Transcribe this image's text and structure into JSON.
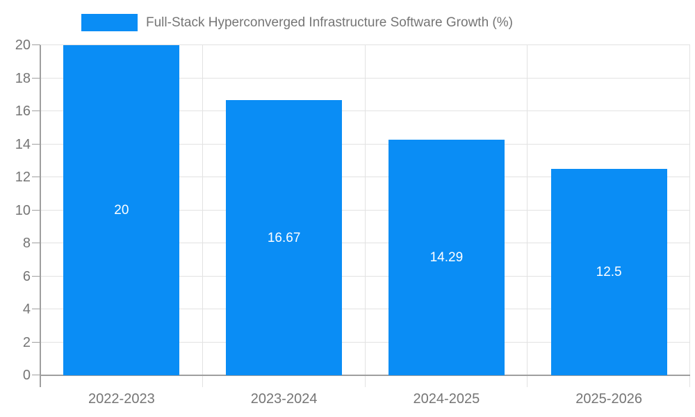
{
  "chart_data": {
    "type": "bar",
    "title": "Full-Stack Hyperconverged Infrastructure Software Growth (%)",
    "legend_position": "top",
    "categories": [
      "2022-2023",
      "2023-2024",
      "2024-2025",
      "2025-2026"
    ],
    "series": [
      {
        "name": "Full-Stack Hyperconverged Infrastructure Software Growth (%)",
        "values": [
          20,
          16.67,
          14.29,
          12.5
        ],
        "labels": [
          "20",
          "16.67",
          "14.29",
          "12.5"
        ]
      }
    ],
    "xlabel": "",
    "ylabel": "",
    "ylim": [
      0,
      20
    ],
    "yticks": [
      "0",
      "2",
      "4",
      "6",
      "8",
      "10",
      "12",
      "14",
      "16",
      "18",
      "20"
    ],
    "grid": true,
    "colors": {
      "bar": "#0a8df5",
      "bar_label": "#ffffff",
      "tick_text": "#757575",
      "legend_text": "#757575",
      "axis_line": "#9e9e9e",
      "gridline": "#e2e2e2"
    }
  }
}
